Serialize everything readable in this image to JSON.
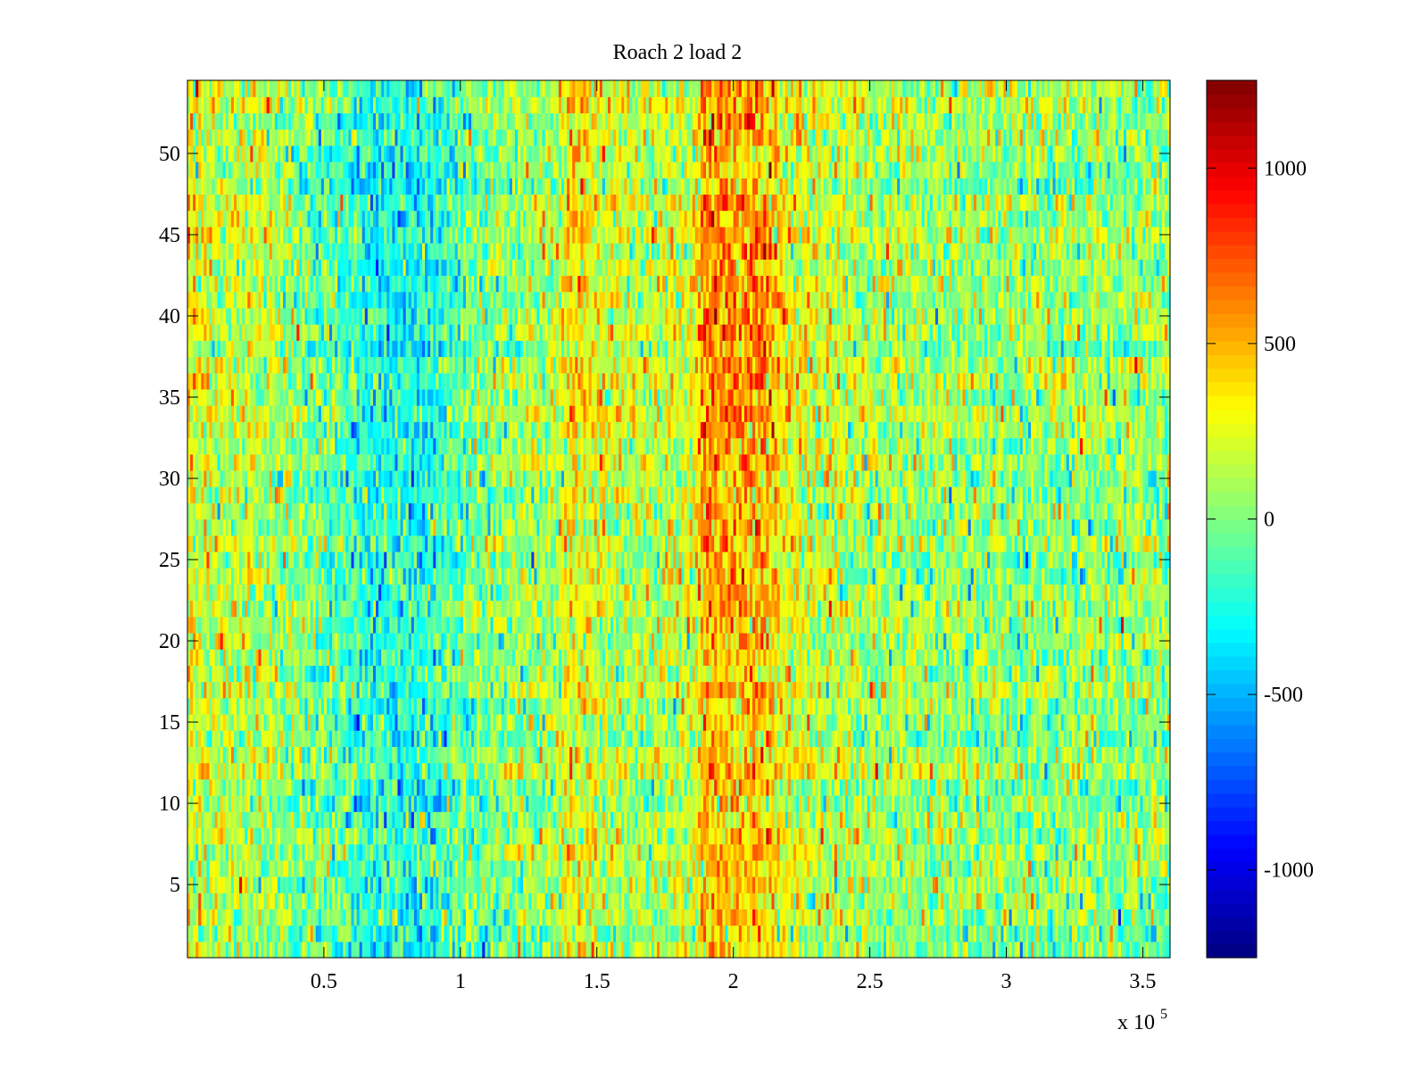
{
  "chart_data": {
    "type": "heatmap",
    "title": "Roach 2 load 2",
    "xlabel": "",
    "ylabel": "",
    "x_multiplier_label": "x 10",
    "x_multiplier_exponent": "5",
    "xlim": [
      0,
      3.6
    ],
    "ylim": [
      0.5,
      54.5
    ],
    "grid": false,
    "rows": 54,
    "columns": 360,
    "x_ticks": [
      {
        "value": 0.5,
        "label": "0.5"
      },
      {
        "value": 1,
        "label": "1"
      },
      {
        "value": 1.5,
        "label": "1.5"
      },
      {
        "value": 2,
        "label": "2"
      },
      {
        "value": 2.5,
        "label": "2.5"
      },
      {
        "value": 3,
        "label": "3"
      },
      {
        "value": 3.5,
        "label": "3.5"
      }
    ],
    "y_ticks": [
      {
        "value": 5,
        "label": "5"
      },
      {
        "value": 10,
        "label": "10"
      },
      {
        "value": 15,
        "label": "15"
      },
      {
        "value": 20,
        "label": "20"
      },
      {
        "value": 25,
        "label": "25"
      },
      {
        "value": 30,
        "label": "30"
      },
      {
        "value": 35,
        "label": "35"
      },
      {
        "value": 40,
        "label": "40"
      },
      {
        "value": 45,
        "label": "45"
      },
      {
        "value": 50,
        "label": "50"
      }
    ],
    "colorbar": {
      "colormap": "jet",
      "range": [
        -1250,
        1250
      ],
      "ticks": [
        {
          "value": 1000,
          "label": "1000"
        },
        {
          "value": 500,
          "label": "500"
        },
        {
          "value": 0,
          "label": "0"
        },
        {
          "value": -500,
          "label": "-500"
        },
        {
          "value": -1000,
          "label": "-1000"
        }
      ]
    },
    "column_profile_x1e5": [
      0,
      0.1,
      0.3,
      0.5,
      0.65,
      0.8,
      0.9,
      1.0,
      1.2,
      1.35,
      1.4,
      1.5,
      1.6,
      1.7,
      1.85,
      1.9,
      2.0,
      2.1,
      2.2,
      2.5,
      3.0,
      3.6
    ],
    "column_profile_mean": [
      280,
      200,
      120,
      -60,
      -260,
      -320,
      -260,
      -60,
      60,
      120,
      380,
      280,
      180,
      160,
      250,
      640,
      560,
      620,
      320,
      120,
      40,
      60
    ],
    "row_emphasis": {
      "blue_band_peak_row": 43,
      "red_band_peak_row": 42,
      "lower_row_weight": 0.45
    },
    "noise_amplitude": 260,
    "noise_seed": 20240517
  }
}
